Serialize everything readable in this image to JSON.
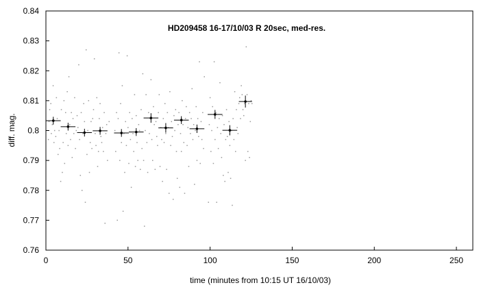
{
  "chart_data": {
    "type": "scatter",
    "title": "HD209458 16-17/10/03 R 20sec, med-res.",
    "xlabel": "time (minutes from 10:15 UT 16/10/03)",
    "ylabel": "diff. mag.",
    "xlim": [
      0,
      260
    ],
    "ylim": [
      0.76,
      0.84
    ],
    "x_ticks": [
      "0",
      "50",
      "100",
      "150",
      "200",
      "250"
    ],
    "y_ticks": [
      "0.76",
      "0.77",
      "0.78",
      "0.79",
      "0.8",
      "0.81",
      "0.82",
      "0.83",
      "0.84"
    ],
    "grid": false,
    "legend": "none",
    "raw_points": [
      [
        1.5,
        0.797
      ],
      [
        1.9,
        0.803
      ],
      [
        2.3,
        0.807
      ],
      [
        3.0,
        0.809
      ],
      [
        3.3,
        0.799
      ],
      [
        3.9,
        0.802
      ],
      [
        4.4,
        0.815
      ],
      [
        4.9,
        0.796
      ],
      [
        5.3,
        0.8
      ],
      [
        6.0,
        0.798
      ],
      [
        6.4,
        0.811
      ],
      [
        6.9,
        0.804
      ],
      [
        7.4,
        0.792
      ],
      [
        8.0,
        0.8
      ],
      [
        8.4,
        0.794
      ],
      [
        9.0,
        0.783
      ],
      [
        9.4,
        0.807
      ],
      [
        10.0,
        0.786
      ],
      [
        10.5,
        0.796
      ],
      [
        11.0,
        0.81
      ],
      [
        11.4,
        0.789
      ],
      [
        12.0,
        0.806
      ],
      [
        12.4,
        0.799
      ],
      [
        13.0,
        0.813
      ],
      [
        13.5,
        0.795
      ],
      [
        14.0,
        0.818
      ],
      [
        14.5,
        0.802
      ],
      [
        15.0,
        0.797
      ],
      [
        15.5,
        0.806
      ],
      [
        16.0,
        0.791
      ],
      [
        16.5,
        0.804
      ],
      [
        17.0,
        0.799
      ],
      [
        17.5,
        0.811
      ],
      [
        18.0,
        0.794
      ],
      [
        18.5,
        0.8
      ],
      [
        19.0,
        0.805
      ],
      [
        19.5,
        0.801
      ],
      [
        20.0,
        0.822
      ],
      [
        20.5,
        0.797
      ],
      [
        21.0,
        0.785
      ],
      [
        21.5,
        0.806
      ],
      [
        22.0,
        0.78
      ],
      [
        22.5,
        0.799
      ],
      [
        23.0,
        0.809
      ],
      [
        23.5,
        0.803
      ],
      [
        24.0,
        0.776
      ],
      [
        24.5,
        0.827
      ],
      [
        25.0,
        0.792
      ],
      [
        25.5,
        0.8
      ],
      [
        26.0,
        0.81
      ],
      [
        26.5,
        0.786
      ],
      [
        27.0,
        0.796
      ],
      [
        27.5,
        0.803
      ],
      [
        28.0,
        0.794
      ],
      [
        28.5,
        0.804
      ],
      [
        29.0,
        0.807
      ],
      [
        29.5,
        0.824
      ],
      [
        30.0,
        0.799
      ],
      [
        30.5,
        0.795
      ],
      [
        31.0,
        0.811
      ],
      [
        31.5,
        0.788
      ],
      [
        32.0,
        0.793
      ],
      [
        32.5,
        0.804
      ],
      [
        33.0,
        0.809
      ],
      [
        33.5,
        0.798
      ],
      [
        34.0,
        0.796
      ],
      [
        34.5,
        0.801
      ],
      [
        35.0,
        0.793
      ],
      [
        35.5,
        0.806
      ],
      [
        36.0,
        0.769
      ],
      [
        36.5,
        0.799
      ],
      [
        37.0,
        0.802
      ],
      [
        37.5,
        0.79
      ],
      [
        38.5,
        0.803
      ],
      [
        42.0,
        0.8
      ],
      [
        42.5,
        0.793
      ],
      [
        43.0,
        0.806
      ],
      [
        43.5,
        0.77
      ],
      [
        44.0,
        0.804
      ],
      [
        44.5,
        0.826
      ],
      [
        45.0,
        0.79
      ],
      [
        45.5,
        0.809
      ],
      [
        46.0,
        0.796
      ],
      [
        46.5,
        0.815
      ],
      [
        47.0,
        0.773
      ],
      [
        47.5,
        0.799
      ],
      [
        48.0,
        0.786
      ],
      [
        48.5,
        0.803
      ],
      [
        49.0,
        0.795
      ],
      [
        49.5,
        0.825
      ],
      [
        50.0,
        0.801
      ],
      [
        50.5,
        0.789
      ],
      [
        51.0,
        0.806
      ],
      [
        51.5,
        0.797
      ],
      [
        52.0,
        0.781
      ],
      [
        52.5,
        0.804
      ],
      [
        53.0,
        0.799
      ],
      [
        53.5,
        0.793
      ],
      [
        54.0,
        0.812
      ],
      [
        54.5,
        0.788
      ],
      [
        55.0,
        0.805
      ],
      [
        55.5,
        0.796
      ],
      [
        56.0,
        0.79
      ],
      [
        56.5,
        0.802
      ],
      [
        57.0,
        0.8
      ],
      [
        57.5,
        0.787
      ],
      [
        58.0,
        0.807
      ],
      [
        58.5,
        0.794
      ],
      [
        59.0,
        0.819
      ],
      [
        59.5,
        0.79
      ],
      [
        60.0,
        0.768
      ],
      [
        60.5,
        0.8
      ],
      [
        61.0,
        0.812
      ],
      [
        61.5,
        0.796
      ],
      [
        62.0,
        0.786
      ],
      [
        62.5,
        0.806
      ],
      [
        63.0,
        0.799
      ],
      [
        63.5,
        0.804
      ],
      [
        64.0,
        0.817
      ],
      [
        64.5,
        0.797
      ],
      [
        65.0,
        0.79
      ],
      [
        65.5,
        0.808
      ],
      [
        66.0,
        0.802
      ],
      [
        66.5,
        0.787
      ],
      [
        67.0,
        0.803
      ],
      [
        67.5,
        0.798
      ],
      [
        68.0,
        0.795
      ],
      [
        68.5,
        0.806
      ],
      [
        69.0,
        0.812
      ],
      [
        69.5,
        0.788
      ],
      [
        70.0,
        0.801
      ],
      [
        70.5,
        0.797
      ],
      [
        71.0,
        0.783
      ],
      [
        71.5,
        0.804
      ],
      [
        72.0,
        0.796
      ],
      [
        72.5,
        0.809
      ],
      [
        73.0,
        0.799
      ],
      [
        73.5,
        0.787
      ],
      [
        74.0,
        0.806
      ],
      [
        74.5,
        0.801
      ],
      [
        75.0,
        0.779
      ],
      [
        75.5,
        0.813
      ],
      [
        76.0,
        0.795
      ],
      [
        76.5,
        0.803
      ],
      [
        77.0,
        0.798
      ],
      [
        77.5,
        0.777
      ],
      [
        78.0,
        0.805
      ],
      [
        78.5,
        0.8
      ],
      [
        79.0,
        0.807
      ],
      [
        79.5,
        0.793
      ],
      [
        80.0,
        0.784
      ],
      [
        80.5,
        0.802
      ],
      [
        81.0,
        0.806
      ],
      [
        81.5,
        0.781
      ],
      [
        82.0,
        0.799
      ],
      [
        82.5,
        0.793
      ],
      [
        83.0,
        0.81
      ],
      [
        83.5,
        0.802
      ],
      [
        84.0,
        0.796
      ],
      [
        84.5,
        0.779
      ],
      [
        85.0,
        0.804
      ],
      [
        85.5,
        0.808
      ],
      [
        86.0,
        0.795
      ],
      [
        86.5,
        0.801
      ],
      [
        87.0,
        0.788
      ],
      [
        87.5,
        0.806
      ],
      [
        88.0,
        0.799
      ],
      [
        88.5,
        0.804
      ],
      [
        89.0,
        0.814
      ],
      [
        89.5,
        0.797
      ],
      [
        90.0,
        0.802
      ],
      [
        90.5,
        0.782
      ],
      [
        91.0,
        0.8
      ],
      [
        91.5,
        0.808
      ],
      [
        92.0,
        0.79
      ],
      [
        92.5,
        0.804
      ],
      [
        93.0,
        0.798
      ],
      [
        93.5,
        0.823
      ],
      [
        94.0,
        0.789
      ],
      [
        94.5,
        0.803
      ],
      [
        95.0,
        0.797
      ],
      [
        95.5,
        0.806
      ],
      [
        96.0,
        0.794
      ],
      [
        96.5,
        0.818
      ],
      [
        99.0,
        0.776
      ],
      [
        99.5,
        0.802
      ],
      [
        100.0,
        0.811
      ],
      [
        100.5,
        0.793
      ],
      [
        101.0,
        0.8
      ],
      [
        101.5,
        0.808
      ],
      [
        102.0,
        0.789
      ],
      [
        102.5,
        0.823
      ],
      [
        103.0,
        0.797
      ],
      [
        103.5,
        0.806
      ],
      [
        104.0,
        0.776
      ],
      [
        104.5,
        0.801
      ],
      [
        105.0,
        0.794
      ],
      [
        105.5,
        0.804
      ],
      [
        106.0,
        0.816
      ],
      [
        106.5,
        0.799
      ],
      [
        107.0,
        0.791
      ],
      [
        107.5,
        0.805
      ],
      [
        108.0,
        0.785
      ],
      [
        108.5,
        0.802
      ],
      [
        109.0,
        0.783
      ],
      [
        109.5,
        0.797
      ],
      [
        110.0,
        0.807
      ],
      [
        110.5,
        0.798
      ],
      [
        111.0,
        0.786
      ],
      [
        111.5,
        0.803
      ],
      [
        112.0,
        0.795
      ],
      [
        112.5,
        0.784
      ],
      [
        113.0,
        0.8
      ],
      [
        113.5,
        0.775
      ],
      [
        114.0,
        0.804
      ],
      [
        114.5,
        0.797
      ],
      [
        115.0,
        0.813
      ],
      [
        115.5,
        0.793
      ],
      [
        116.0,
        0.807
      ],
      [
        116.5,
        0.801
      ],
      [
        117.0,
        0.799
      ],
      [
        117.5,
        0.809
      ],
      [
        118.0,
        0.811
      ],
      [
        118.5,
        0.804
      ],
      [
        119.0,
        0.815
      ],
      [
        119.5,
        0.812
      ],
      [
        120.0,
        0.807
      ],
      [
        120.5,
        0.805
      ],
      [
        121.0,
        0.809
      ],
      [
        121.5,
        0.79
      ],
      [
        122.0,
        0.828
      ],
      [
        122.5,
        0.812
      ],
      [
        123.0,
        0.793
      ],
      [
        123.5,
        0.809
      ],
      [
        124.0,
        0.791
      ],
      [
        124.5,
        0.803
      ],
      [
        125.0,
        0.81
      ],
      [
        125.5,
        0.809
      ]
    ],
    "binned": [
      {
        "x": 4.5,
        "y": 0.8033,
        "xerr": 4.5,
        "yerr": 0.0013
      },
      {
        "x": 13.5,
        "y": 0.8013,
        "xerr": 4.5,
        "yerr": 0.0013
      },
      {
        "x": 23.5,
        "y": 0.7993,
        "xerr": 4.5,
        "yerr": 0.0013
      },
      {
        "x": 33.0,
        "y": 0.7999,
        "xerr": 4.5,
        "yerr": 0.0013
      },
      {
        "x": 46.0,
        "y": 0.7992,
        "xerr": 4.5,
        "yerr": 0.0013
      },
      {
        "x": 55.0,
        "y": 0.7995,
        "xerr": 4.5,
        "yerr": 0.0013
      },
      {
        "x": 64.0,
        "y": 0.8042,
        "xerr": 4.5,
        "yerr": 0.0016
      },
      {
        "x": 73.0,
        "y": 0.8009,
        "xerr": 4.5,
        "yerr": 0.0016
      },
      {
        "x": 82.5,
        "y": 0.8035,
        "xerr": 4.5,
        "yerr": 0.0013
      },
      {
        "x": 92.0,
        "y": 0.8006,
        "xerr": 4.5,
        "yerr": 0.0014
      },
      {
        "x": 103.0,
        "y": 0.8054,
        "xerr": 4.5,
        "yerr": 0.0015
      },
      {
        "x": 112.0,
        "y": 0.8001,
        "xerr": 4.5,
        "yerr": 0.0017
      },
      {
        "x": 121.5,
        "y": 0.8097,
        "xerr": 4.0,
        "yerr": 0.002
      }
    ],
    "colors": {
      "raw_points": "#999999",
      "binned": "#000000",
      "axes": "#000000"
    }
  }
}
